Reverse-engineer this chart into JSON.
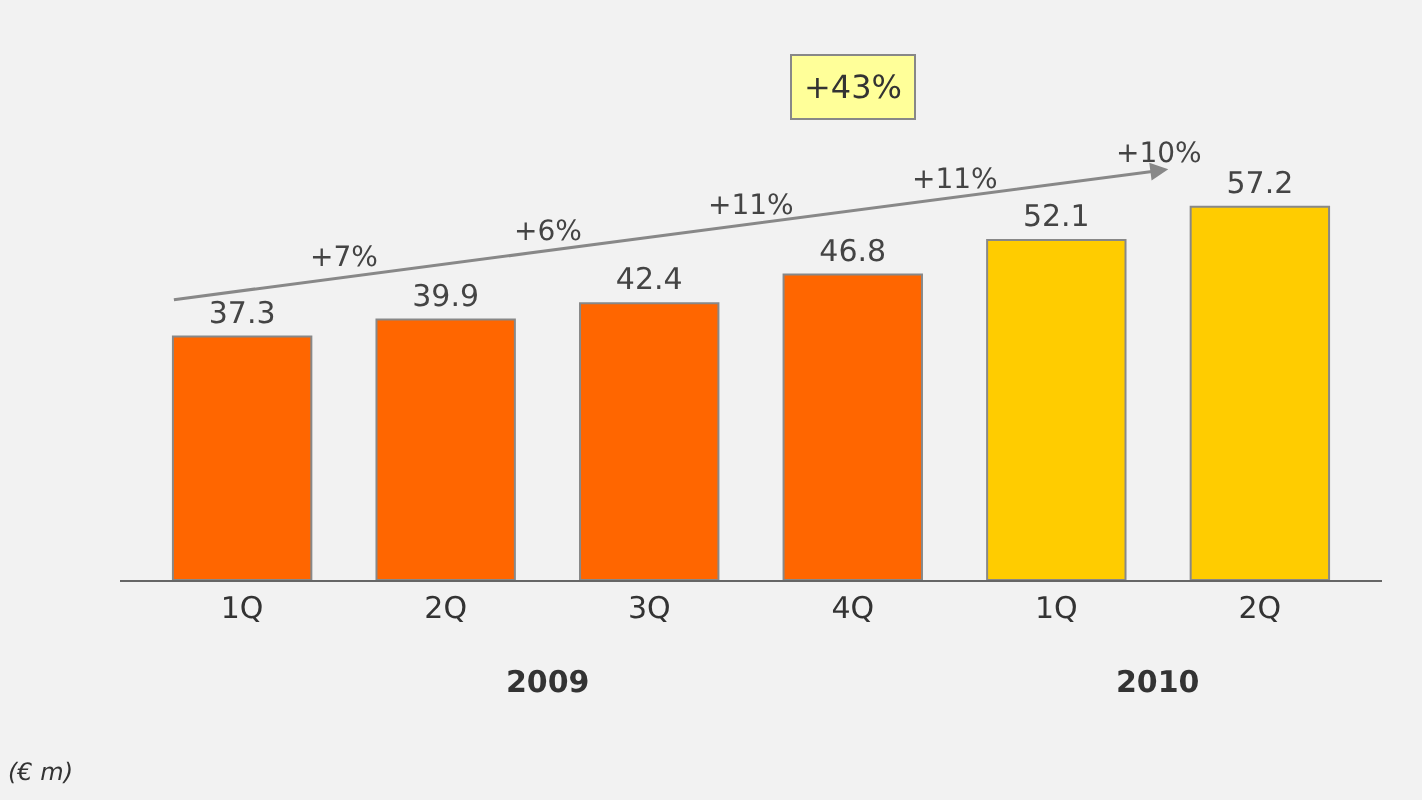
{
  "chart_data": {
    "type": "bar",
    "categories": [
      "1Q",
      "2Q",
      "3Q",
      "4Q",
      "1Q",
      "2Q"
    ],
    "values": [
      37.3,
      39.9,
      42.4,
      46.8,
      52.1,
      57.2
    ],
    "colors": [
      "#ff6600",
      "#ff6600",
      "#ff6600",
      "#ff6600",
      "#ffcc00",
      "#ffcc00"
    ],
    "data_labels": true,
    "annotations": [
      "+7%",
      "+6%",
      "+11%",
      "+11%",
      "+10%",
      "+43%",
      "2009",
      "2010",
      "(€ m)"
    ]
  }
}
